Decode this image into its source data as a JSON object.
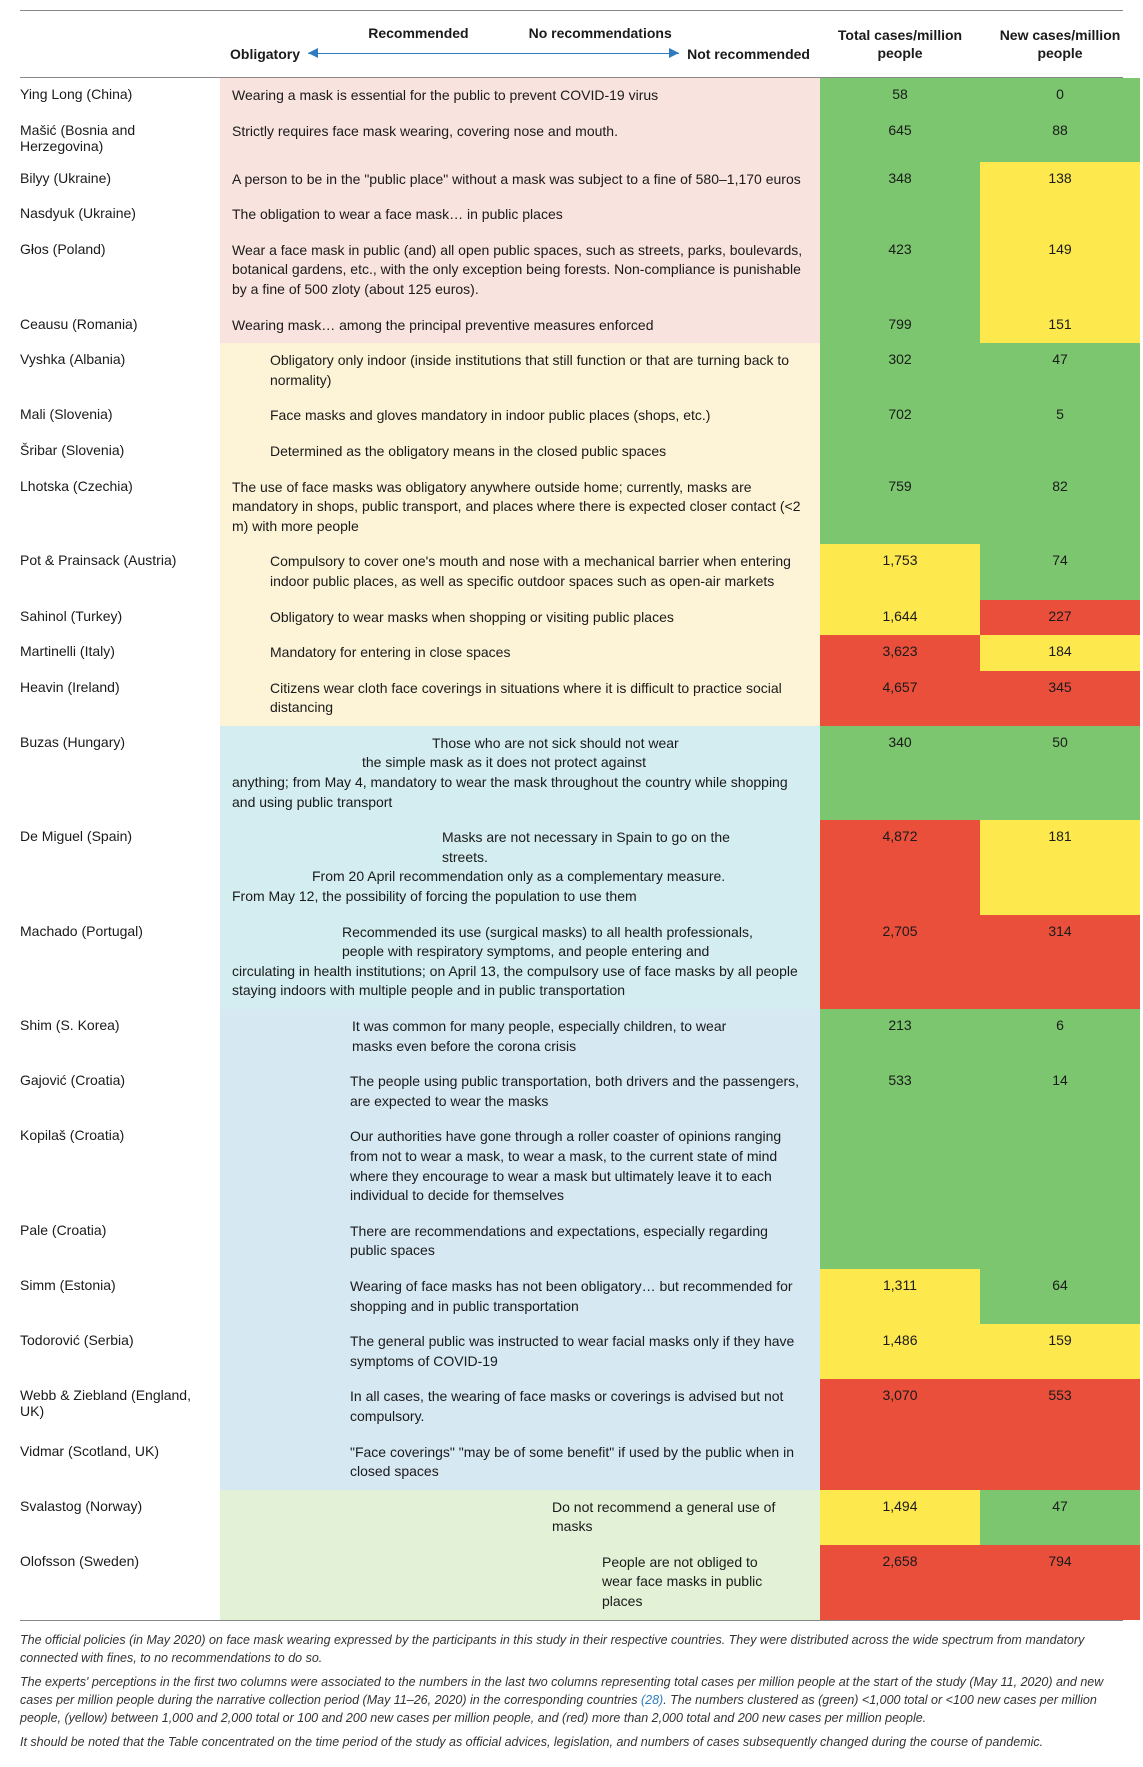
{
  "header": {
    "rec": "Recommended",
    "norec": "No recommendations",
    "oblig": "Obligatory",
    "notrec": "Not recommended",
    "tot": "Total cases/million people",
    "new": "New cases/million people"
  },
  "rows": [
    {
      "n": "Ying Long (China)",
      "d": "Wearing a mask is essential for the public to prevent COVID-19 virus",
      "t": "58",
      "w": "0",
      "cat": "c1",
      "o": "off0",
      "ct": "g",
      "cw": "g"
    },
    {
      "n": "Mašić (Bosnia and Herzegovina)",
      "d": "Strictly requires face mask wearing, covering nose and mouth.",
      "t": "645",
      "w": "88",
      "cat": "c1",
      "o": "off0",
      "ct": "g",
      "cw": "g"
    },
    {
      "n": "Bilyy (Ukraine)",
      "d": "A person to be in the \"public place\" without a mask was subject to a fine of 580–1,170 euros",
      "t": "348",
      "w": "138",
      "cat": "c1",
      "o": "off0",
      "ct": "g",
      "cw": "y",
      "span": 2
    },
    {
      "n": "Nasdyuk (Ukraine)",
      "d": "The obligation to wear a face mask… in public places",
      "cat": "c1",
      "o": "off0"
    },
    {
      "n": "Głos (Poland)",
      "d": "Wear a face mask in public (and) all open public spaces, such as streets, parks, boulevards, botanical gardens, etc., with the only exception being forests. Non-compliance is punishable by a fine of 500 zloty (about 125 euros).",
      "t": "423",
      "w": "149",
      "cat": "c1",
      "o": "off0",
      "ct": "g",
      "cw": "y"
    },
    {
      "n": "Ceausu (Romania)",
      "d": "Wearing mask… among the principal preventive measures enforced",
      "t": "799",
      "w": "151",
      "cat": "c1",
      "o": "off0",
      "ct": "g",
      "cw": "y"
    },
    {
      "n": "Vyshka (Albania)",
      "d": "Obligatory only indoor (inside institutions that still function or that are turning back to normality)",
      "t": "302",
      "w": "47",
      "cat": "c2",
      "o": "off1",
      "ct": "g",
      "cw": "g"
    },
    {
      "n": "Mali (Slovenia)",
      "d": "Face masks and gloves mandatory in indoor public places (shops, etc.)",
      "t": "702",
      "w": "5",
      "cat": "c2",
      "o": "off1",
      "ct": "g",
      "cw": "g",
      "span": 2
    },
    {
      "n": "Šribar (Slovenia)",
      "d": "Determined as the obligatory means in the closed public spaces",
      "cat": "c2",
      "o": "off1"
    },
    {
      "n": "Lhotska (Czechia)",
      "d": "The use of face masks was obligatory anywhere outside home;\ncurrently, masks are mandatory in shops, public transport, and places where there is expected closer contact (<2 m) with more people",
      "t": "759",
      "w": "82",
      "cat": "c2",
      "o": "off0",
      "ct": "g",
      "cw": "g"
    },
    {
      "n": "Pot & Prainsack (Austria)",
      "d": "Compulsory to cover one's mouth and nose with a mechanical barrier when entering indoor public places, as well as specific outdoor spaces such as open-air markets",
      "t": "1,753",
      "w": "74",
      "cat": "c2",
      "o": "off1",
      "ct": "y",
      "cw": "g"
    },
    {
      "n": "Sahinol (Turkey)",
      "d": "Obligatory to wear masks when shopping or visiting public places",
      "t": "1,644",
      "w": "227",
      "cat": "c2",
      "o": "off1",
      "ct": "y",
      "cw": "rd"
    },
    {
      "n": "Martinelli (Italy)",
      "d": "Mandatory for entering in close spaces",
      "t": "3,623",
      "w": "184",
      "cat": "c2",
      "o": "off1",
      "ct": "rd",
      "cw": "y"
    },
    {
      "n": "Heavin (Ireland)",
      "d": "Citizens wear cloth face coverings in situations where it is difficult to practice social distancing",
      "t": "4,657",
      "w": "345",
      "cat": "c2",
      "o": "off1",
      "ct": "rd",
      "cw": "rd"
    },
    {
      "n": "Buzas (Hungary)",
      "d1": "Those who are not sick should not wear",
      "d2": "the simple mask as it does not protect against",
      "d3": "anything; from May 4, mandatory to wear the mask throughout the country while shopping and using public transport",
      "t": "340",
      "w": "50",
      "cat": "c3",
      "ct": "g",
      "cw": "g",
      "multi": 1
    },
    {
      "n": "De Miguel (Spain)",
      "d1": "Masks are not necessary in Spain to go on the",
      "d2": "streets.",
      "d3": "From 20 April recommendation only as a complementary measure.",
      "d4": "From May 12, the possibility of forcing the population to use them",
      "t": "4,872",
      "w": "181",
      "cat": "c3",
      "ct": "rd",
      "cw": "y",
      "multi": 2
    },
    {
      "n": "Machado (Portugal)",
      "d1": "Recommended its use (surgical masks) to all health professionals,",
      "d2": "people with respiratory symptoms, and people entering and",
      "d3": "circulating in health institutions; on April 13, the compulsory use of face masks by all people staying indoors with multiple people and in public transportation",
      "t": "2,705",
      "w": "314",
      "cat": "c3",
      "ct": "rd",
      "cw": "rd",
      "multi": 3
    },
    {
      "n": "Shim (S. Korea)",
      "d1": "It was common for many people, especially children, to wear",
      "d2": "masks even before the corona crisis",
      "t": "213",
      "w": "6",
      "cat": "c4",
      "ct": "g",
      "cw": "g",
      "multi": 4
    },
    {
      "n": "Gajović (Croatia)",
      "d": "The people using public transportation, both drivers and the passengers, are expected to wear the masks",
      "t": "533",
      "w": "14",
      "cat": "c4",
      "o": "off2",
      "ct": "g",
      "cw": "g",
      "span": 3
    },
    {
      "n": "Kopilaš (Croatia)",
      "d": "Our authorities have gone through a roller coaster of opinions ranging from not to wear a mask, to wear a mask, to the current state of mind where they encourage to wear a mask but ultimately leave it to each individual to decide for themselves",
      "cat": "c4",
      "o": "off2"
    },
    {
      "n": "Pale (Croatia)",
      "d": "There are recommendations and expectations, especially regarding public spaces",
      "cat": "c4",
      "o": "off2"
    },
    {
      "n": "Simm (Estonia)",
      "d": "Wearing of face masks has not been obligatory… but recommended for shopping and in public transportation",
      "t": "1,311",
      "w": "64",
      "cat": "c4",
      "o": "off2",
      "ct": "y",
      "cw": "g"
    },
    {
      "n": "Todorović (Serbia)",
      "d": "The general public was instructed to wear facial masks only if they have symptoms of COVID-19",
      "t": "1,486",
      "w": "159",
      "cat": "c4",
      "o": "off2",
      "ct": "y",
      "cw": "y"
    },
    {
      "n": "Webb & Ziebland (England, UK)",
      "d": "In all cases, the wearing of face masks or coverings is advised but not compulsory.",
      "t": "3,070",
      "w": "553",
      "cat": "c4",
      "o": "off2",
      "ct": "rd",
      "cw": "rd",
      "span": 2
    },
    {
      "n": "Vidmar (Scotland, UK)",
      "d": "\"Face coverings\" \"may be of some benefit\" if used by the public when in closed spaces",
      "cat": "c4",
      "o": "off2"
    },
    {
      "n": "Svalastog (Norway)",
      "d1": "Do not recommend a general use of",
      "d2": "masks",
      "t": "1,494",
      "w": "47",
      "cat": "c5",
      "ct": "y",
      "cw": "g",
      "multi": 5
    },
    {
      "n": "Olofsson (Sweden)",
      "d1": "People are not obliged to",
      "d2": "wear face masks in public",
      "d3": "places",
      "t": "2,658",
      "w": "794",
      "cat": "c5",
      "ct": "rd",
      "cw": "rd",
      "multi": 6
    }
  ],
  "footer": {
    "p1": "The official policies (in May 2020) on face mask wearing expressed by the participants in this study in their respective countries. They were distributed across the wide spectrum from mandatory connected with fines, to no recommendations to do so.",
    "p2a": "The experts' perceptions in the first two columns were associated to the numbers in the last two columns representing total cases per million people at the start of the study (May 11, 2020) and new cases per million people during the narrative collection period (May 11–26, 2020) in the corresponding countries ",
    "p2ref": "(28)",
    "p2b": ". The numbers clustered as (green) <1,000 total or <100 new cases per million people, (yellow) between 1,000 and 2,000 total or 100 and 200 new cases per million people, and (red) more than 2,000 total and 200 new cases per million people.",
    "p3": "It should be noted that the Table concentrated on the time period of the study as official advices, legislation, and numbers of cases subsequently changed during the course of pandemic."
  }
}
